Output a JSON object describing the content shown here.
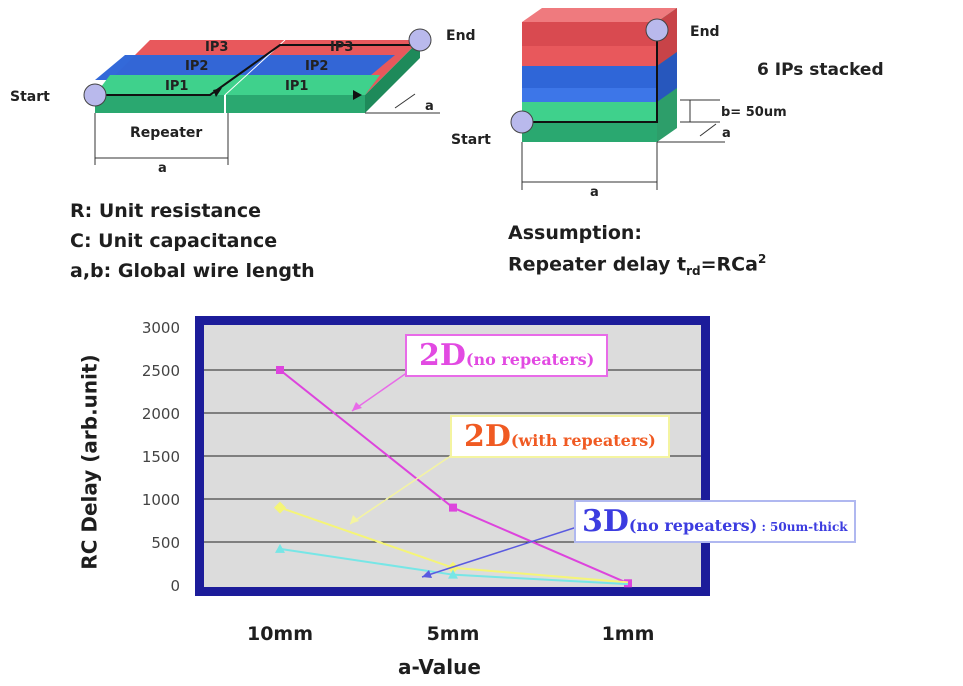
{
  "diagram_2d": {
    "layers": [
      "IP3",
      "IP2",
      "IP1"
    ],
    "layer3_b": "IP3",
    "layer2_b": "IP2",
    "layer1_b": "IP1",
    "start": "Start",
    "end": "End",
    "repeater": "Repeater",
    "dim_a": "a",
    "dim_depth": "a"
  },
  "diagram_3d": {
    "end": "End",
    "start": "Start",
    "stacked": "6 IPs stacked",
    "b_label": "b= 50um",
    "depth": "a",
    "width": "a"
  },
  "definitions": {
    "r": "R: Unit resistance",
    "c": "C: Unit capacitance",
    "ab": "a,b: Global wire length"
  },
  "assumption": {
    "title": "Assumption:",
    "prefix": "Repeater delay t",
    "sub": "rd",
    "eq": "=RCa",
    "sup": "2"
  },
  "colors": {
    "ip3": "#e8585c",
    "ip2": "#2f66d8",
    "ip1": "#2fcf8c",
    "frame": "#1c1c9a",
    "plot_bg": "#dcdcdc",
    "s_2d_norep": "#dd44dd",
    "s_2d_rep": "#f5f577",
    "s_3d": "#77e6e6"
  },
  "chart_data": {
    "type": "line",
    "categories": [
      "10mm",
      "5mm",
      "1mm"
    ],
    "xlabel": "a-Value",
    "ylabel": "RC Delay (arb.unit)",
    "ylim": [
      0,
      3000
    ],
    "yticks": [
      0,
      500,
      1000,
      1500,
      2000,
      2500,
      3000
    ],
    "grid": true,
    "series": [
      {
        "name": "2D(no repeaters)",
        "values": [
          2500,
          900,
          20
        ],
        "color": "#dd44dd"
      },
      {
        "name": "2D(with repeaters)",
        "values": [
          900,
          200,
          30
        ],
        "color": "#f5f577"
      },
      {
        "name": "3D(no repeaters) : 50um-thick",
        "values": [
          420,
          120,
          10
        ],
        "color": "#77e6e6"
      }
    ],
    "callouts": [
      {
        "main": "2D",
        "sub": "(no repeaters)",
        "extra": ""
      },
      {
        "main": "2D",
        "sub": "(with repeaters)",
        "extra": ""
      },
      {
        "main": "3D",
        "sub": "(no repeaters)",
        "extra": " : 50um-thick"
      }
    ]
  }
}
